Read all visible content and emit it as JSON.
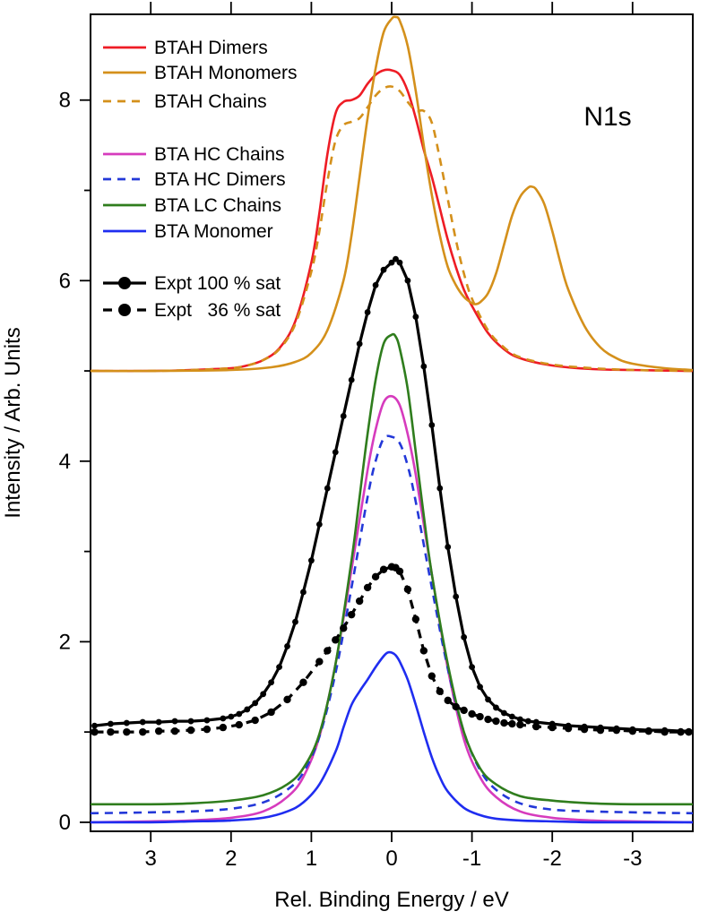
{
  "chart_data": {
    "type": "line",
    "xlabel": "Rel. Binding Energy / eV",
    "ylabel": "Intensity / Arb. Units",
    "annotation": "N1s",
    "xlim": [
      3.75,
      -3.75
    ],
    "ylim": [
      -0.1,
      8.95
    ],
    "x_reversed": true,
    "x_ticks": [
      3,
      2,
      1,
      0,
      -1,
      -2,
      -3
    ],
    "x_tick_labels": [
      "3",
      "2",
      "1",
      "0",
      "-1",
      "-2",
      "-3"
    ],
    "y_ticks": [
      0,
      2,
      4,
      6,
      8
    ],
    "y_tick_labels": [
      "0",
      "2",
      "4",
      "6",
      "8"
    ],
    "grid": false,
    "legend_position": "top-left",
    "series": [
      {
        "name": "BTAH Dimers",
        "color": "#ee1c25",
        "style": "solid",
        "markers": false,
        "x": [
          3.75,
          3.0,
          2.5,
          2.0,
          1.8,
          1.6,
          1.4,
          1.2,
          1.0,
          0.9,
          0.8,
          0.7,
          0.6,
          0.5,
          0.4,
          0.3,
          0.2,
          0.1,
          0.0,
          -0.1,
          -0.2,
          -0.3,
          -0.4,
          -0.5,
          -0.6,
          -0.7,
          -0.8,
          -0.9,
          -1.0,
          -1.2,
          -1.4,
          -1.6,
          -2.0,
          -2.5,
          -3.0,
          -3.75
        ],
        "y": [
          5.0,
          5.0,
          5.01,
          5.03,
          5.06,
          5.12,
          5.25,
          5.55,
          6.2,
          6.75,
          7.4,
          7.85,
          7.98,
          8.0,
          8.05,
          8.18,
          8.28,
          8.33,
          8.33,
          8.28,
          8.1,
          7.8,
          7.45,
          7.15,
          6.8,
          6.45,
          6.15,
          5.9,
          5.72,
          5.42,
          5.24,
          5.14,
          5.06,
          5.02,
          5.01,
          5.0
        ]
      },
      {
        "name": "BTAH Monomers",
        "color": "#d4901b",
        "style": "solid",
        "markers": false,
        "x": [
          3.75,
          3.0,
          2.0,
          1.5,
          1.2,
          1.0,
          0.8,
          0.6,
          0.5,
          0.4,
          0.3,
          0.2,
          0.1,
          0.0,
          -0.05,
          -0.1,
          -0.2,
          -0.3,
          -0.4,
          -0.5,
          -0.6,
          -0.7,
          -0.8,
          -0.9,
          -1.0,
          -1.05,
          -1.1,
          -1.2,
          -1.3,
          -1.4,
          -1.5,
          -1.6,
          -1.7,
          -1.75,
          -1.8,
          -1.9,
          -2.0,
          -2.1,
          -2.2,
          -2.4,
          -2.6,
          -2.8,
          -3.0,
          -3.4,
          -3.75
        ],
        "y": [
          5.0,
          5.0,
          5.01,
          5.04,
          5.1,
          5.2,
          5.45,
          6.0,
          6.5,
          7.15,
          7.8,
          8.35,
          8.75,
          8.9,
          8.92,
          8.88,
          8.6,
          8.1,
          7.5,
          6.95,
          6.5,
          6.15,
          5.95,
          5.82,
          5.75,
          5.74,
          5.76,
          5.86,
          6.08,
          6.4,
          6.72,
          6.93,
          7.03,
          7.04,
          7.01,
          6.85,
          6.55,
          6.2,
          5.9,
          5.5,
          5.26,
          5.14,
          5.08,
          5.03,
          5.01
        ]
      },
      {
        "name": "BTAH Chains",
        "color": "#d4901b",
        "style": "dashed",
        "markers": false,
        "x": [
          3.75,
          3.0,
          2.5,
          2.0,
          1.8,
          1.6,
          1.4,
          1.2,
          1.0,
          0.9,
          0.8,
          0.7,
          0.6,
          0.5,
          0.4,
          0.3,
          0.2,
          0.1,
          0.0,
          -0.1,
          -0.2,
          -0.3,
          -0.4,
          -0.5,
          -0.6,
          -0.7,
          -0.8,
          -0.9,
          -1.0,
          -1.2,
          -1.4,
          -1.6,
          -2.0,
          -2.5,
          -3.0,
          -3.75
        ],
        "y": [
          5.0,
          5.0,
          5.01,
          5.03,
          5.06,
          5.12,
          5.24,
          5.52,
          6.1,
          6.55,
          7.1,
          7.55,
          7.72,
          7.76,
          7.8,
          7.92,
          8.05,
          8.13,
          8.15,
          8.1,
          7.98,
          7.88,
          7.88,
          7.75,
          7.35,
          6.9,
          6.45,
          6.08,
          5.8,
          5.45,
          5.26,
          5.15,
          5.07,
          5.03,
          5.01,
          5.0
        ]
      },
      {
        "name": "BTA HC Chains",
        "color": "#d63bbd",
        "style": "solid",
        "markers": false,
        "x": [
          3.75,
          3.0,
          2.5,
          2.0,
          1.6,
          1.3,
          1.1,
          0.9,
          0.7,
          0.5,
          0.3,
          0.2,
          0.1,
          0.0,
          -0.1,
          -0.2,
          -0.3,
          -0.5,
          -0.7,
          -0.9,
          -1.1,
          -1.3,
          -1.6,
          -2.0,
          -2.5,
          -3.0,
          -3.75
        ],
        "y": [
          0.0,
          0.01,
          0.02,
          0.05,
          0.12,
          0.28,
          0.5,
          0.95,
          1.75,
          2.8,
          3.9,
          4.35,
          4.65,
          4.72,
          4.62,
          4.3,
          3.85,
          2.75,
          1.7,
          0.92,
          0.5,
          0.28,
          0.12,
          0.05,
          0.02,
          0.01,
          0.0
        ]
      },
      {
        "name": "BTA HC Dimers",
        "color": "#2338d8",
        "style": "dashed",
        "markers": false,
        "x": [
          3.75,
          3.0,
          2.5,
          2.0,
          1.6,
          1.3,
          1.1,
          0.9,
          0.7,
          0.5,
          0.3,
          0.2,
          0.1,
          0.0,
          -0.1,
          -0.2,
          -0.3,
          -0.5,
          -0.7,
          -0.9,
          -1.1,
          -1.3,
          -1.6,
          -2.0,
          -2.5,
          -3.0,
          -3.75
        ],
        "y": [
          0.1,
          0.11,
          0.12,
          0.15,
          0.22,
          0.36,
          0.55,
          0.95,
          1.65,
          2.6,
          3.6,
          4.0,
          4.25,
          4.27,
          4.2,
          3.95,
          3.55,
          2.6,
          1.7,
          1.0,
          0.58,
          0.36,
          0.21,
          0.14,
          0.12,
          0.11,
          0.1
        ]
      },
      {
        "name": "BTA LC Chains",
        "color": "#2f7d1d",
        "style": "solid",
        "markers": false,
        "x": [
          3.75,
          3.0,
          2.5,
          2.0,
          1.6,
          1.3,
          1.1,
          0.9,
          0.7,
          0.5,
          0.4,
          0.3,
          0.2,
          0.1,
          0.0,
          -0.05,
          -0.1,
          -0.2,
          -0.3,
          -0.4,
          -0.5,
          -0.7,
          -0.9,
          -1.1,
          -1.3,
          -1.6,
          -2.0,
          -2.5,
          -3.0,
          -3.75
        ],
        "y": [
          0.2,
          0.2,
          0.21,
          0.24,
          0.3,
          0.42,
          0.6,
          0.98,
          1.75,
          2.9,
          3.6,
          4.3,
          4.9,
          5.3,
          5.4,
          5.38,
          5.25,
          4.8,
          4.1,
          3.4,
          2.75,
          1.75,
          1.0,
          0.6,
          0.42,
          0.29,
          0.24,
          0.21,
          0.2,
          0.2
        ]
      },
      {
        "name": "BTA Monomer",
        "color": "#1f2df0",
        "style": "solid",
        "markers": false,
        "x": [
          3.75,
          3.0,
          2.5,
          2.0,
          1.6,
          1.3,
          1.1,
          0.9,
          0.7,
          0.6,
          0.5,
          0.4,
          0.3,
          0.2,
          0.1,
          0.05,
          0.0,
          -0.05,
          -0.1,
          -0.2,
          -0.3,
          -0.4,
          -0.5,
          -0.6,
          -0.7,
          -0.9,
          -1.1,
          -1.3,
          -1.6,
          -2.0,
          -2.5,
          -3.0,
          -3.75
        ],
        "y": [
          0.0,
          0.0,
          0.01,
          0.02,
          0.05,
          0.12,
          0.22,
          0.42,
          0.78,
          1.05,
          1.3,
          1.45,
          1.58,
          1.72,
          1.84,
          1.88,
          1.88,
          1.85,
          1.78,
          1.58,
          1.3,
          1.0,
          0.72,
          0.5,
          0.34,
          0.16,
          0.08,
          0.04,
          0.02,
          0.01,
          0.0,
          0.0,
          0.0
        ]
      },
      {
        "name": "Expt 100 % sat",
        "color": "#000000",
        "style": "solid",
        "markers": true,
        "x": [
          3.7,
          3.5,
          3.3,
          3.1,
          2.9,
          2.7,
          2.5,
          2.3,
          2.1,
          2.0,
          1.9,
          1.8,
          1.7,
          1.6,
          1.5,
          1.4,
          1.3,
          1.2,
          1.1,
          1.0,
          0.9,
          0.8,
          0.7,
          0.6,
          0.5,
          0.4,
          0.3,
          0.2,
          0.1,
          0.0,
          -0.05,
          -0.1,
          -0.2,
          -0.3,
          -0.4,
          -0.5,
          -0.6,
          -0.7,
          -0.8,
          -0.9,
          -1.0,
          -1.1,
          -1.2,
          -1.3,
          -1.4,
          -1.5,
          -1.6,
          -1.7,
          -1.8,
          -2.0,
          -2.2,
          -2.4,
          -2.6,
          -2.8,
          -3.0,
          -3.2,
          -3.4,
          -3.6,
          -3.7
        ],
        "y": [
          1.07,
          1.09,
          1.1,
          1.11,
          1.11,
          1.12,
          1.12,
          1.13,
          1.15,
          1.17,
          1.2,
          1.25,
          1.32,
          1.42,
          1.55,
          1.72,
          1.95,
          2.22,
          2.55,
          2.9,
          3.3,
          3.7,
          4.1,
          4.5,
          4.9,
          5.3,
          5.65,
          5.95,
          6.12,
          6.2,
          6.24,
          6.2,
          6.0,
          5.6,
          5.05,
          4.4,
          3.7,
          3.05,
          2.5,
          2.05,
          1.72,
          1.5,
          1.36,
          1.27,
          1.21,
          1.17,
          1.14,
          1.12,
          1.11,
          1.09,
          1.07,
          1.06,
          1.05,
          1.04,
          1.03,
          1.02,
          1.02,
          1.01,
          1.01
        ]
      },
      {
        "name": "Expt   36 % sat",
        "color": "#000000",
        "style": "dashed",
        "markers": true,
        "x": [
          3.7,
          3.5,
          3.3,
          3.1,
          2.9,
          2.7,
          2.5,
          2.3,
          2.1,
          1.9,
          1.7,
          1.5,
          1.3,
          1.1,
          0.9,
          0.8,
          0.7,
          0.6,
          0.5,
          0.4,
          0.3,
          0.2,
          0.1,
          0.0,
          -0.05,
          -0.1,
          -0.2,
          -0.3,
          -0.4,
          -0.5,
          -0.6,
          -0.7,
          -0.8,
          -0.9,
          -1.0,
          -1.1,
          -1.2,
          -1.3,
          -1.4,
          -1.5,
          -1.6,
          -1.8,
          -2.0,
          -2.2,
          -2.4,
          -2.6,
          -2.8,
          -3.0,
          -3.2,
          -3.4,
          -3.6,
          -3.7
        ],
        "y": [
          1.0,
          1.0,
          1.0,
          1.0,
          1.01,
          1.01,
          1.02,
          1.03,
          1.05,
          1.08,
          1.13,
          1.22,
          1.36,
          1.55,
          1.78,
          1.9,
          2.02,
          2.15,
          2.3,
          2.45,
          2.6,
          2.72,
          2.8,
          2.83,
          2.82,
          2.78,
          2.58,
          2.25,
          1.9,
          1.62,
          1.45,
          1.35,
          1.28,
          1.24,
          1.2,
          1.17,
          1.14,
          1.12,
          1.1,
          1.09,
          1.08,
          1.06,
          1.05,
          1.04,
          1.03,
          1.02,
          1.02,
          1.01,
          1.01,
          1.0,
          1.0,
          1.0
        ]
      }
    ]
  }
}
